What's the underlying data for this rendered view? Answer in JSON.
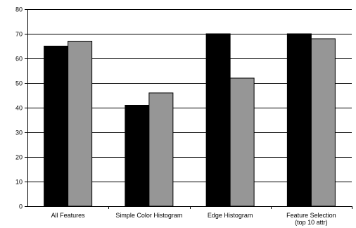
{
  "chart_data": {
    "type": "bar",
    "categories": [
      [
        "All Features"
      ],
      [
        "Simple Color Histogram"
      ],
      [
        "Edge Histogram"
      ],
      [
        "Feature Selection",
        "(top 10 attr)"
      ]
    ],
    "series": [
      {
        "color": "#000000",
        "values": [
          65,
          41,
          70,
          70
        ]
      },
      {
        "color": "#969696",
        "values": [
          67,
          46,
          52,
          68
        ]
      }
    ],
    "ylim": [
      0,
      80
    ],
    "yticks": [
      0,
      10,
      20,
      30,
      40,
      50,
      60,
      70,
      80
    ],
    "grid": true,
    "legend": "none",
    "title": "",
    "xlabel": "",
    "ylabel": ""
  }
}
